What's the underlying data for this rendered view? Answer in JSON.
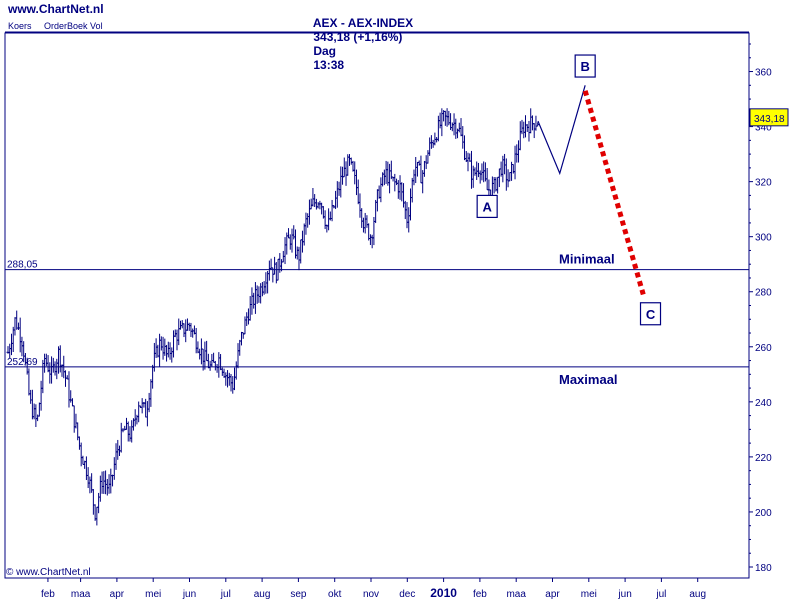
{
  "header": {
    "site": "www.ChartNet.nl",
    "index_name": "AEX - AEX-INDEX",
    "last_value": "343,18 (+1,16%)",
    "period": "Dag",
    "time": "13:38"
  },
  "sublabels": {
    "left": "Koers",
    "right": "OrderBoek Vol"
  },
  "copyright": "© www.ChartNet.nl",
  "colors": {
    "frame": "#000080",
    "price": "#000080",
    "projection": "#e00000",
    "last_badge_fill": "#ffff00",
    "box_fill": "#ffffff"
  },
  "chart_data": {
    "type": "ohlc",
    "title": "AEX - AEX-INDEX",
    "ylim": [
      176,
      374
    ],
    "y_ticks": [
      {
        "value": 180,
        "label": "180"
      },
      {
        "value": 200,
        "label": "200"
      },
      {
        "value": 220,
        "label": "220"
      },
      {
        "value": 240,
        "label": "240"
      },
      {
        "value": 260,
        "label": "260"
      },
      {
        "value": 280,
        "label": "280"
      },
      {
        "value": 300,
        "label": "300"
      },
      {
        "value": 320,
        "label": "320"
      },
      {
        "value": 340,
        "label": "340"
      },
      {
        "value": 360,
        "label": "360"
      }
    ],
    "x_ticks": [
      {
        "value": 1.1,
        "label": "feb",
        "bold": false
      },
      {
        "value": 2.0,
        "label": "maa",
        "bold": false
      },
      {
        "value": 3.0,
        "label": "apr",
        "bold": false
      },
      {
        "value": 4.0,
        "label": "mei",
        "bold": false
      },
      {
        "value": 5.0,
        "label": "jun",
        "bold": false
      },
      {
        "value": 6.0,
        "label": "jul",
        "bold": false
      },
      {
        "value": 7.0,
        "label": "aug",
        "bold": false
      },
      {
        "value": 8.0,
        "label": "sep",
        "bold": false
      },
      {
        "value": 9.0,
        "label": "okt",
        "bold": false
      },
      {
        "value": 10.0,
        "label": "nov",
        "bold": false
      },
      {
        "value": 11.0,
        "label": "dec",
        "bold": false
      },
      {
        "value": 12.0,
        "label": "2010",
        "bold": true
      },
      {
        "value": 13.0,
        "label": "feb",
        "bold": false
      },
      {
        "value": 14.0,
        "label": "maa",
        "bold": false
      },
      {
        "value": 15.0,
        "label": "apr",
        "bold": false
      },
      {
        "value": 16.0,
        "label": "mei",
        "bold": false
      },
      {
        "value": 17.0,
        "label": "jun",
        "bold": false
      },
      {
        "value": 18.0,
        "label": "jul",
        "bold": false
      },
      {
        "value": 19.0,
        "label": "aug",
        "bold": false
      }
    ],
    "price_path": [
      [
        0.0,
        258
      ],
      [
        0.2,
        270
      ],
      [
        0.4,
        262
      ],
      [
        0.6,
        240
      ],
      [
        0.8,
        232
      ],
      [
        1.0,
        256
      ],
      [
        1.2,
        250
      ],
      [
        1.4,
        258
      ],
      [
        1.6,
        248
      ],
      [
        1.8,
        235
      ],
      [
        2.0,
        222
      ],
      [
        2.2,
        214
      ],
      [
        2.4,
        200
      ],
      [
        2.6,
        212
      ],
      [
        2.8,
        208
      ],
      [
        3.0,
        222
      ],
      [
        3.2,
        230
      ],
      [
        3.4,
        228
      ],
      [
        3.6,
        240
      ],
      [
        3.8,
        236
      ],
      [
        4.0,
        254
      ],
      [
        4.2,
        262
      ],
      [
        4.4,
        256
      ],
      [
        4.6,
        264
      ],
      [
        4.8,
        266
      ],
      [
        5.0,
        268
      ],
      [
        5.2,
        262
      ],
      [
        5.4,
        256
      ],
      [
        5.6,
        252
      ],
      [
        5.8,
        256
      ],
      [
        6.0,
        250
      ],
      [
        6.2,
        246
      ],
      [
        6.4,
        262
      ],
      [
        6.6,
        272
      ],
      [
        6.8,
        278
      ],
      [
        7.0,
        282
      ],
      [
        7.2,
        290
      ],
      [
        7.4,
        287
      ],
      [
        7.6,
        296
      ],
      [
        7.8,
        300
      ],
      [
        8.0,
        292
      ],
      [
        8.2,
        305
      ],
      [
        8.4,
        312
      ],
      [
        8.6,
        314
      ],
      [
        8.8,
        303
      ],
      [
        9.0,
        312
      ],
      [
        9.2,
        322
      ],
      [
        9.4,
        327
      ],
      [
        9.6,
        318
      ],
      [
        9.8,
        305
      ],
      [
        10.0,
        300
      ],
      [
        10.2,
        316
      ],
      [
        10.4,
        323
      ],
      [
        10.6,
        320
      ],
      [
        10.8,
        318
      ],
      [
        11.0,
        306
      ],
      [
        11.2,
        326
      ],
      [
        11.4,
        322
      ],
      [
        11.6,
        332
      ],
      [
        11.8,
        338
      ],
      [
        12.0,
        343
      ],
      [
        12.2,
        342
      ],
      [
        12.4,
        340
      ],
      [
        12.6,
        330
      ],
      [
        12.8,
        322
      ],
      [
        13.0,
        326
      ],
      [
        13.2,
        317
      ],
      [
        13.4,
        318
      ],
      [
        13.6,
        326
      ],
      [
        13.8,
        320
      ],
      [
        14.0,
        330
      ],
      [
        14.2,
        340
      ],
      [
        14.4,
        341
      ],
      [
        14.6,
        342
      ]
    ],
    "projection_path": [
      [
        14.6,
        342
      ],
      [
        15.2,
        323
      ],
      [
        15.9,
        355
      ]
    ],
    "projection_dotted": [
      [
        15.9,
        353
      ],
      [
        17.5,
        279
      ]
    ],
    "horizontal_lines": [
      {
        "name": "Minimaal",
        "value": 288.05,
        "label": "288,05"
      },
      {
        "name": "Maximaal",
        "value": 252.69,
        "label": "252,69"
      }
    ],
    "last_price": {
      "value": 343.18,
      "label": "343,18"
    },
    "wave_labels": [
      {
        "label": "A",
        "x": 13.2,
        "y": 311
      },
      {
        "label": "B",
        "x": 15.9,
        "y": 362
      },
      {
        "label": "C",
        "x": 17.7,
        "y": 272
      }
    ]
  }
}
